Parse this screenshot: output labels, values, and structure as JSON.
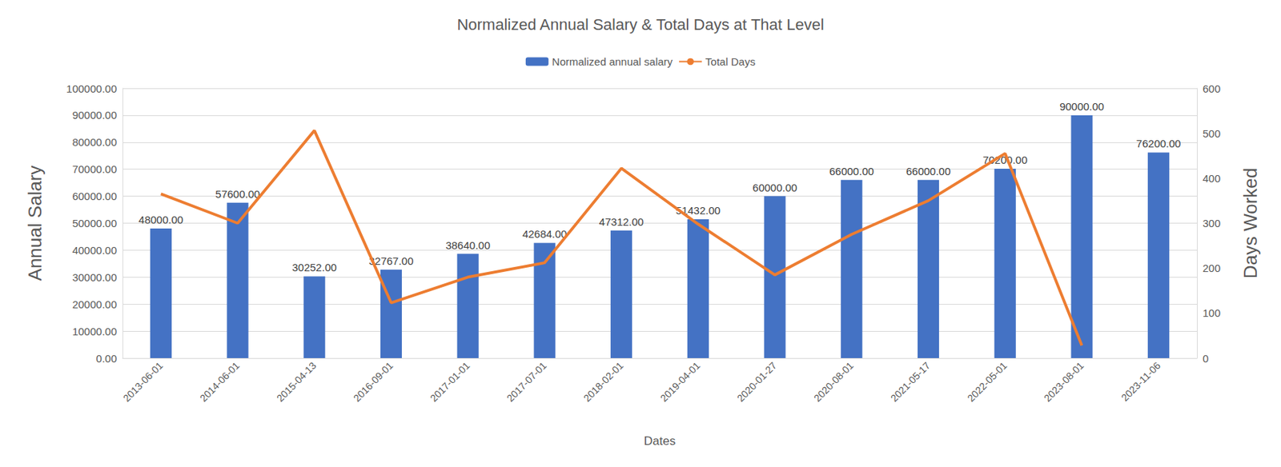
{
  "chart_data": {
    "type": "bar",
    "title": "Normalized Annual Salary & Total Days at That Level",
    "x_label": "Dates",
    "y_label": "Annual Salary",
    "y2_label": "Days Worked",
    "categories": [
      "2013-06-01",
      "2014-06-01",
      "2015-04-13",
      "2016-09-01",
      "2017-01-01",
      "2017-07-01",
      "2018-02-01",
      "2019-04-01",
      "2020-01-27",
      "2020-08-01",
      "2021-05-17",
      "2022-05-01",
      "2023-08-01",
      "2023-11-06"
    ],
    "series": [
      {
        "name": "Normalized annual salary",
        "type": "bar",
        "color": "#4472c4",
        "values": [
          48000,
          57600,
          30252,
          32767,
          38640,
          42684,
          47312,
          51432,
          60000,
          66000,
          66000,
          70200,
          90000,
          76200
        ],
        "value_labels": [
          "48000.00",
          "57600.00",
          "30252.00",
          "32767.00",
          "38640.00",
          "42684.00",
          "47312.00",
          "51432.00",
          "60000.00",
          "66000.00",
          "66000.00",
          "70200.00",
          "90000.00",
          "76200.00"
        ],
        "data_labels": true
      },
      {
        "name": "Total Days",
        "type": "line",
        "color": "#ed7d31",
        "axis": "y2",
        "values": [
          365,
          300,
          506,
          123,
          180,
          212,
          422,
          298,
          185,
          275,
          350,
          455,
          28,
          null
        ]
      }
    ],
    "ylim": [
      0,
      100000
    ],
    "yticks": [
      {
        "value": 0,
        "label": "0.00"
      },
      {
        "value": 10000,
        "label": "10000.00"
      },
      {
        "value": 20000,
        "label": "20000.00"
      },
      {
        "value": 30000,
        "label": "30000.00"
      },
      {
        "value": 40000,
        "label": "40000.00"
      },
      {
        "value": 50000,
        "label": "50000.00"
      },
      {
        "value": 60000,
        "label": "60000.00"
      },
      {
        "value": 70000,
        "label": "70000.00"
      },
      {
        "value": 80000,
        "label": "80000.00"
      },
      {
        "value": 90000,
        "label": "90000.00"
      },
      {
        "value": 100000,
        "label": "100000.00"
      }
    ],
    "y2lim": [
      0,
      600
    ],
    "y2ticks": [
      0,
      100,
      200,
      300,
      400,
      500,
      600
    ],
    "grid": true,
    "legend": "top"
  }
}
